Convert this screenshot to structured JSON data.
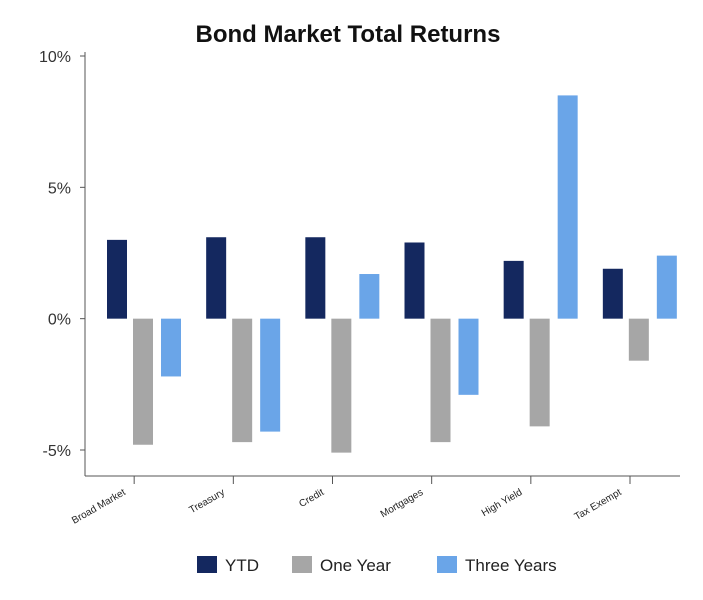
{
  "chart_data": {
    "type": "bar",
    "title": "Bond Market Total Returns",
    "categories": [
      "Broad Market",
      "Treasury",
      "Credit",
      "Mortgages",
      "High Yield",
      "Tax Exempt"
    ],
    "series": [
      {
        "name": "YTD",
        "color": "#14285f",
        "values": [
          3.0,
          3.1,
          3.1,
          2.9,
          2.2,
          1.9
        ]
      },
      {
        "name": "One Year",
        "color": "#a6a6a6",
        "values": [
          -4.8,
          -4.7,
          -5.1,
          -4.7,
          -4.1,
          -1.6
        ]
      },
      {
        "name": "Three Years",
        "color": "#6aa5e8",
        "values": [
          -2.2,
          -4.3,
          1.7,
          -2.9,
          8.5,
          2.4
        ]
      }
    ],
    "ylim": [
      -5,
      10
    ],
    "yticks": [
      10,
      5,
      0,
      -5
    ],
    "ytick_labels": [
      "10%",
      "5%",
      "0%",
      "-5%"
    ],
    "legend_position": "bottom",
    "grid": false
  }
}
